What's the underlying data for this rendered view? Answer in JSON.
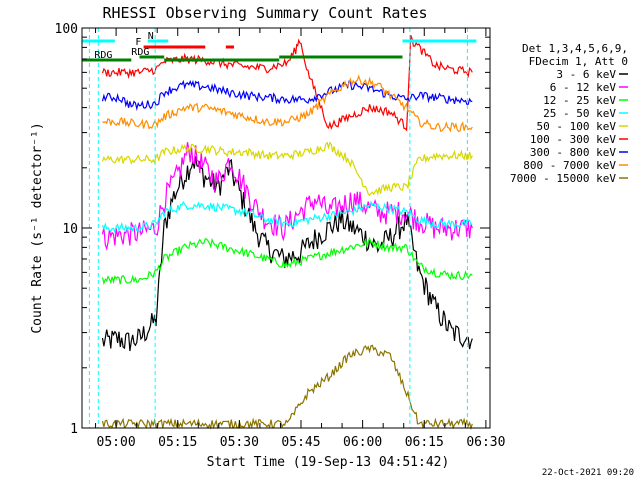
{
  "chart_data": {
    "type": "line",
    "title": "RHESSI Observing Summary Count Rates",
    "xlabel": "Start Time (19-Sep-13 04:51:42)",
    "ylabel": "Count Rate (s⁻¹ detector⁻¹)",
    "yscale": "log",
    "ylim": [
      1,
      100
    ],
    "xlim": [
      "04:51:42",
      "06:31:00"
    ],
    "x_ticks": [
      "05:00",
      "05:15",
      "05:30",
      "05:45",
      "06:00",
      "06:15",
      "06:30"
    ],
    "y_ticks": [
      "1",
      "10",
      "100"
    ],
    "timestamp": "22-Oct-2021 09:20",
    "legend": {
      "placement": "right",
      "header": [
        "Det 1,3,4,5,6,9,",
        "FDecim 1, Att 0"
      ],
      "entries": [
        {
          "name": "3 - 6 keV",
          "color": "#000000"
        },
        {
          "name": "6 - 12 keV",
          "color": "#ff00ff"
        },
        {
          "name": "12 - 25 keV",
          "color": "#00ff00"
        },
        {
          "name": "25 - 50 keV",
          "color": "#00ffff"
        },
        {
          "name": "50 - 100 keV",
          "color": "#d7d700"
        },
        {
          "name": "100 - 300 keV",
          "color": "#ff0000"
        },
        {
          "name": "300 - 800 keV",
          "color": "#0000ff"
        },
        {
          "name": "800 - 7000 keV",
          "color": "#ff8c00"
        },
        {
          "name": "7000 - 15000 keV",
          "color": "#8b7500"
        }
      ]
    },
    "flags": [
      {
        "label": "N",
        "color": "#00ffff"
      },
      {
        "label": "F",
        "color": "#ff0000"
      },
      {
        "label": "RDG",
        "color": "#008000"
      },
      {
        "label": "RDG",
        "color": "#008000"
      }
    ],
    "series": [
      {
        "name": "3 - 6 keV",
        "color": "#000000",
        "x": [
          5.0,
          9.0,
          11.0,
          14.0,
          18.0,
          20.0,
          22.0,
          24.0,
          27.0,
          30.0,
          33.0,
          36.0,
          39.0,
          42.0,
          45.0,
          49.0,
          53.0,
          57.0,
          60.0,
          63.0,
          66.0,
          69.0,
          72.0,
          75.0,
          79.0,
          82.0,
          86.0,
          90.0,
          95.0
        ],
        "y": [
          2.7,
          2.8,
          2.7,
          2.8,
          3.5,
          10,
          14,
          17,
          22,
          18,
          16,
          20,
          14,
          10,
          8,
          7,
          7.5,
          9,
          10,
          11,
          10,
          9,
          8,
          9,
          11,
          6,
          4,
          3,
          2.8
        ]
      },
      {
        "name": "6 - 12 keV",
        "color": "#ff00ff",
        "x": [
          5.0,
          14.0,
          18.0,
          20.0,
          23.0,
          26.0,
          30.0,
          33.0,
          36.0,
          39.0,
          42.0,
          45.0,
          49.0,
          53.0,
          57.0,
          60.0,
          63.0,
          66.0,
          69.0,
          72.0,
          75.0,
          79.0,
          82.0,
          86.0,
          90.0,
          95.0
        ],
        "y": [
          9,
          9.5,
          10,
          14,
          18,
          25,
          20,
          17,
          22,
          17,
          13,
          11,
          10,
          12,
          14,
          12,
          13,
          14,
          13,
          12,
          12,
          12,
          11,
          10,
          10,
          10
        ]
      },
      {
        "name": "12 - 25 keV",
        "color": "#00ff00",
        "x": [
          5.0,
          9.0,
          14.0,
          18.0,
          20.0,
          25.0,
          30.0,
          35.0,
          40.0,
          45.0,
          50.0,
          55.0,
          60.0,
          65.0,
          70.0,
          75.0,
          79.0,
          82.0,
          86.0,
          90.0,
          95.0
        ],
        "y": [
          5.5,
          5.5,
          5.5,
          6,
          7,
          8,
          8.5,
          8,
          7.5,
          7,
          6.5,
          7,
          7.5,
          8,
          8.5,
          8,
          8,
          6.5,
          6,
          5.8,
          5.8
        ]
      },
      {
        "name": "25 - 50 keV",
        "color": "#00ffff",
        "x": [
          5.0,
          9.0,
          14.0,
          18.0,
          20.0,
          25.0,
          30.0,
          35.0,
          40.0,
          45.0,
          50.0,
          55.0,
          60.0,
          65.0,
          70.0,
          75.0,
          79.0,
          82.0,
          86.0,
          90.0,
          95.0
        ],
        "y": [
          10,
          10,
          10,
          10.5,
          12,
          13,
          13,
          12.5,
          12,
          11,
          10.5,
          11,
          11.5,
          12,
          13,
          12.5,
          12,
          11,
          10.5,
          10.5,
          10.5
        ]
      },
      {
        "name": "50 - 100 keV",
        "color": "#d7d700",
        "x": [
          5.0,
          9.0,
          14.0,
          18.0,
          20.0,
          25.0,
          30.0,
          35.0,
          40.0,
          45.0,
          50.0,
          55.0,
          60.0,
          65.0,
          70.0,
          75.0,
          79.0,
          82.0,
          86.0,
          90.0,
          95.0
        ],
        "y": [
          22,
          22,
          22,
          22,
          24,
          25,
          25,
          24,
          24,
          23,
          23,
          24,
          26,
          22,
          15,
          16,
          16,
          22,
          23,
          23,
          23
        ]
      },
      {
        "name": "100 - 300 keV",
        "color": "#ff0000",
        "x": [
          5.0,
          9.0,
          14.0,
          18.0,
          20.0,
          25.0,
          30.0,
          35.0,
          40.0,
          45.0,
          50.0,
          52.0,
          53.0,
          55.0,
          60.0,
          65.0,
          70.0,
          75.0,
          79.0,
          80.0,
          82.0,
          86.0,
          90.0,
          95.0
        ],
        "y": [
          60,
          60,
          60,
          62,
          68,
          70,
          69,
          66,
          64,
          63,
          67,
          78,
          88,
          60,
          32,
          36,
          40,
          38,
          32,
          88,
          80,
          65,
          62,
          60
        ]
      },
      {
        "name": "300 - 800 keV",
        "color": "#0000ff",
        "x": [
          5.0,
          9.0,
          12.0,
          14.0,
          18.0,
          20.0,
          25.0,
          30.0,
          35.0,
          40.0,
          45.0,
          50.0,
          55.0,
          60.0,
          65.0,
          70.0,
          75.0,
          79.0,
          82.0,
          86.0,
          90.0,
          95.0
        ],
        "y": [
          45,
          45,
          41,
          41,
          42,
          48,
          52,
          51,
          48,
          46,
          45,
          44,
          44,
          48,
          52,
          50,
          46,
          44,
          46,
          45,
          44,
          43
        ]
      },
      {
        "name": "800 - 7000 keV",
        "color": "#ff8c00",
        "x": [
          5.0,
          9.0,
          14.0,
          18.0,
          20.0,
          25.0,
          30.0,
          35.0,
          40.0,
          45.0,
          50.0,
          55.0,
          60.0,
          65.0,
          68.0,
          72.0,
          75.0,
          79.0,
          82.0,
          86.0,
          90.0,
          95.0
        ],
        "y": [
          34,
          34,
          33,
          33,
          36,
          40,
          40,
          38,
          36,
          34,
          34,
          37,
          46,
          54,
          55,
          52,
          46,
          40,
          34,
          32,
          32,
          32
        ]
      },
      {
        "name": "7000 - 15000 keV",
        "color": "#8b7500",
        "x": [
          5.0,
          14.0,
          18.0,
          20.0,
          25.0,
          30.0,
          35.0,
          40.0,
          45.0,
          50.0,
          55.0,
          60.0,
          65.0,
          70.0,
          75.0,
          79.0,
          82.0,
          86.0,
          90.0,
          95.0
        ],
        "y": [
          1.05,
          1.05,
          1.05,
          1.05,
          1.05,
          1.05,
          1.05,
          1.05,
          1.05,
          1.05,
          1.5,
          1.8,
          2.3,
          2.5,
          2.3,
          1.5,
          1.05,
          1.05,
          1.05,
          1.05
        ]
      }
    ]
  }
}
